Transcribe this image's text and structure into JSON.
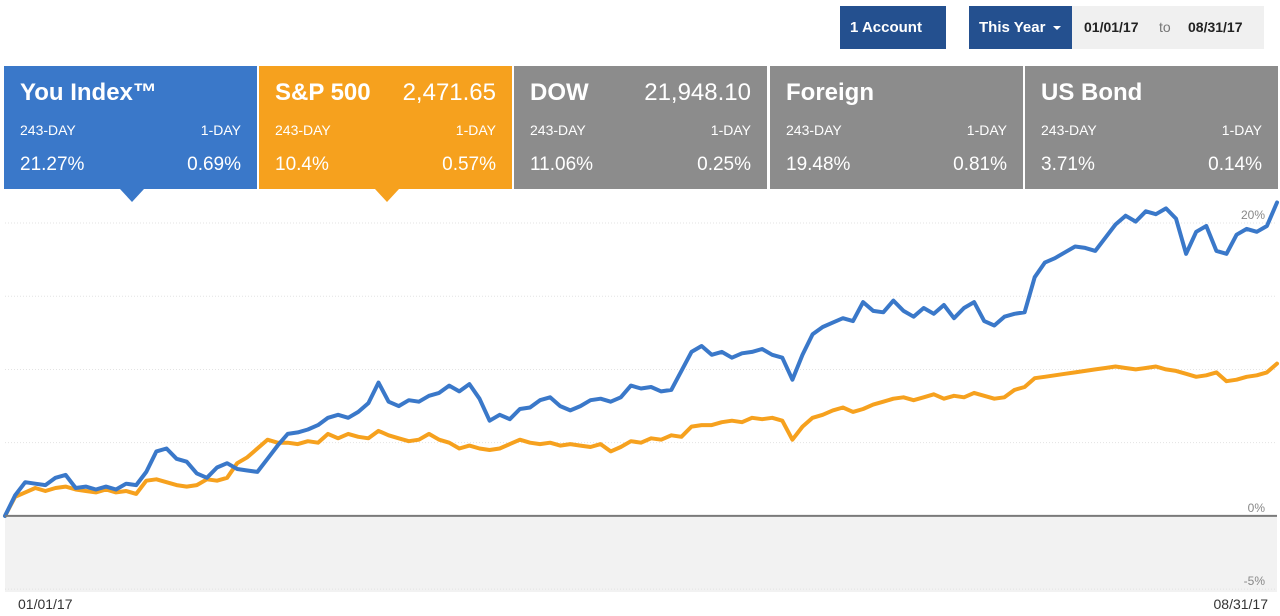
{
  "controls": {
    "account_label": "1 Account",
    "period_label": "This Year",
    "start_date": "01/01/17",
    "to_label": "to",
    "end_date": "08/31/17"
  },
  "tiles": [
    {
      "name": "You Index™",
      "price": "",
      "label_period": "243-DAY",
      "label_day": "1-DAY",
      "value_period": "21.27%",
      "value_day": "0.69%",
      "color": "#3a78c9",
      "selected": true
    },
    {
      "name": "S&P 500",
      "price": "2,471.65",
      "label_period": "243-DAY",
      "label_day": "1-DAY",
      "value_period": "10.4%",
      "value_day": "0.57%",
      "color": "#f6a11e",
      "selected": true
    },
    {
      "name": "DOW",
      "price": "21,948.10",
      "label_period": "243-DAY",
      "label_day": "1-DAY",
      "value_period": "11.06%",
      "value_day": "0.25%",
      "color": "#8c8c8c",
      "selected": false
    },
    {
      "name": "Foreign",
      "price": "",
      "label_period": "243-DAY",
      "label_day": "1-DAY",
      "value_period": "19.48%",
      "value_day": "0.81%",
      "color": "#8c8c8c",
      "selected": false
    },
    {
      "name": "US Bond",
      "price": "",
      "label_period": "243-DAY",
      "label_day": "1-DAY",
      "value_period": "3.71%",
      "value_day": "0.14%",
      "color": "#8c8c8c",
      "selected": false
    }
  ],
  "chart_data": {
    "type": "line",
    "x_start_label": "01/01/17",
    "x_end_label": "08/31/17",
    "y_ticks": [
      {
        "value": 20,
        "label": "20%"
      },
      {
        "value": 0,
        "label": "0%"
      },
      {
        "value": -5,
        "label": "-5%"
      }
    ],
    "y_gridlines": [
      20,
      15,
      10,
      5,
      0,
      -5
    ],
    "ylim": [
      -5.2,
      21.3
    ],
    "grid": true,
    "legend": "none",
    "series": [
      {
        "name": "You Index™",
        "color": "#3a78c9",
        "values": [
          0.0,
          1.4,
          2.3,
          2.2,
          2.1,
          2.6,
          2.8,
          1.9,
          2.0,
          1.8,
          2.0,
          1.8,
          2.2,
          2.1,
          3.0,
          4.4,
          4.6,
          3.9,
          3.7,
          2.9,
          2.6,
          3.3,
          3.6,
          3.2,
          3.1,
          3.0,
          3.9,
          4.8,
          5.6,
          5.7,
          5.9,
          6.2,
          6.7,
          6.9,
          6.7,
          7.1,
          7.7,
          9.1,
          7.8,
          7.5,
          7.9,
          7.8,
          8.2,
          8.4,
          8.9,
          8.5,
          9.0,
          8.0,
          6.5,
          6.9,
          6.6,
          7.3,
          7.4,
          7.9,
          8.1,
          7.5,
          7.2,
          7.5,
          7.9,
          8.0,
          7.8,
          8.1,
          8.9,
          8.7,
          8.8,
          8.5,
          8.6,
          9.9,
          11.2,
          11.6,
          11.0,
          11.2,
          10.8,
          11.1,
          11.2,
          11.4,
          11.0,
          10.8,
          9.3,
          11.0,
          12.4,
          12.9,
          13.2,
          13.5,
          13.3,
          14.6,
          14.0,
          13.9,
          14.7,
          14.0,
          13.6,
          14.2,
          13.8,
          14.4,
          13.5,
          14.2,
          14.6,
          13.3,
          13.0,
          13.6,
          13.8,
          13.9,
          16.3,
          17.3,
          17.6,
          18.0,
          18.4,
          18.3,
          18.1,
          19.0,
          19.9,
          20.5,
          20.1,
          20.8,
          20.6,
          21.0,
          20.3,
          17.9,
          19.4,
          19.8,
          18.1,
          17.9,
          19.2,
          19.6,
          19.4,
          19.8,
          21.4
        ]
      },
      {
        "name": "S&P 500",
        "color": "#f6a11e",
        "values": [
          0.0,
          1.3,
          1.6,
          1.9,
          1.7,
          1.9,
          2.0,
          1.8,
          1.7,
          1.6,
          1.8,
          1.6,
          1.7,
          1.5,
          2.4,
          2.5,
          2.3,
          2.1,
          2.0,
          2.1,
          2.5,
          2.4,
          2.6,
          3.6,
          4.0,
          4.6,
          5.2,
          5.0,
          5.0,
          4.9,
          5.1,
          5.0,
          5.6,
          5.3,
          5.6,
          5.4,
          5.3,
          5.8,
          5.5,
          5.3,
          5.1,
          5.2,
          5.6,
          5.2,
          5.0,
          4.6,
          4.8,
          4.6,
          4.5,
          4.6,
          4.9,
          5.2,
          5.0,
          4.9,
          5.0,
          4.8,
          4.9,
          4.8,
          4.7,
          4.9,
          4.4,
          4.7,
          5.1,
          5.0,
          5.3,
          5.2,
          5.5,
          5.4,
          6.1,
          6.2,
          6.2,
          6.4,
          6.5,
          6.4,
          6.7,
          6.6,
          6.7,
          6.5,
          5.2,
          6.1,
          6.7,
          6.9,
          7.2,
          7.4,
          7.1,
          7.3,
          7.6,
          7.8,
          8.0,
          8.1,
          7.9,
          8.1,
          8.3,
          8.0,
          8.2,
          8.1,
          8.4,
          8.2,
          8.0,
          8.1,
          8.6,
          8.8,
          9.4,
          9.5,
          9.6,
          9.7,
          9.8,
          9.9,
          10.0,
          10.1,
          10.2,
          10.1,
          10.0,
          10.1,
          10.2,
          10.0,
          9.9,
          9.7,
          9.5,
          9.6,
          9.8,
          9.2,
          9.3,
          9.5,
          9.6,
          9.8,
          10.4
        ]
      }
    ]
  }
}
